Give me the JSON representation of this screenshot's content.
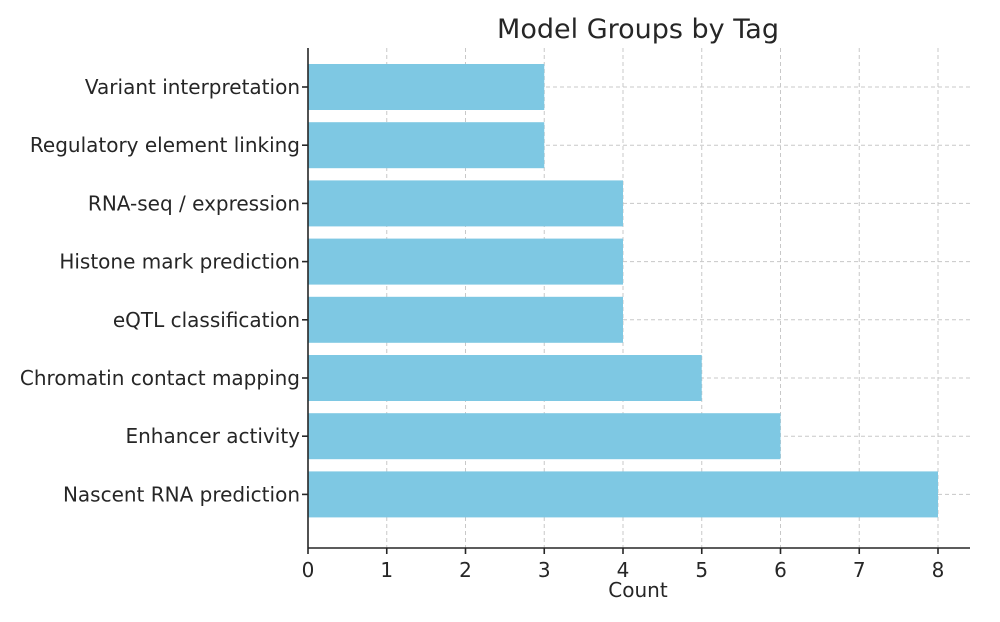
{
  "chart_data": {
    "type": "bar",
    "orientation": "horizontal",
    "title": "Model Groups by Tag",
    "xlabel": "Count",
    "ylabel": "",
    "categories": [
      "Nascent RNA prediction",
      "Enhancer activity",
      "Chromatin contact mapping",
      "eQTL classification",
      "Histone mark prediction",
      "RNA-seq / expression",
      "Regulatory element linking",
      "Variant interpretation"
    ],
    "values": [
      8,
      6,
      5,
      4,
      4,
      4,
      3,
      3
    ],
    "xlim": [
      0,
      8.4
    ],
    "xticks": [
      "0",
      "1",
      "2",
      "3",
      "4",
      "5",
      "6",
      "7",
      "8"
    ],
    "grid": true,
    "bar_color": "#7ec8e3"
  }
}
